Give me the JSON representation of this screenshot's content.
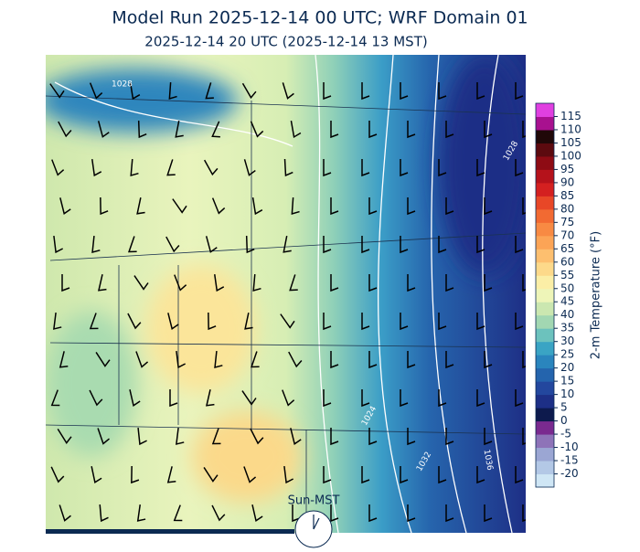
{
  "title": "Model Run 2025-12-14 00 UTC; WRF Domain 01",
  "subtitle": "2025-12-14 20 UTC  (2025-12-14 13 MST)",
  "isobar_labels": [
    "1028",
    "1028",
    "1024",
    "1032",
    "1036"
  ],
  "clock_label": "Sun-MST",
  "colorbar": {
    "label": "2-m Temperature (°F)",
    "clim": [
      -25,
      120
    ],
    "ticks": [
      -20,
      -15,
      -10,
      -5,
      0,
      5,
      10,
      15,
      20,
      25,
      30,
      35,
      40,
      45,
      50,
      55,
      60,
      65,
      70,
      75,
      80,
      85,
      90,
      95,
      100,
      105,
      110,
      115
    ],
    "colors": [
      "#cfe6f5",
      "#b3c8e6",
      "#9ba6d3",
      "#8e73b8",
      "#7a2a8f",
      "#0d1a4d",
      "#1d2f86",
      "#23479e",
      "#2464ad",
      "#2a85bd",
      "#3aa4c4",
      "#6cc2bd",
      "#a2d7b2",
      "#cbe7b0",
      "#eef5b8",
      "#fbeea6",
      "#fdd98a",
      "#fdbf6f",
      "#fca456",
      "#f88a43",
      "#f26a32",
      "#e84727",
      "#d42020",
      "#b5121b",
      "#8e0b14",
      "#5c0a0f",
      "#200808",
      "#a8118f",
      "#e040e0"
    ]
  }
}
